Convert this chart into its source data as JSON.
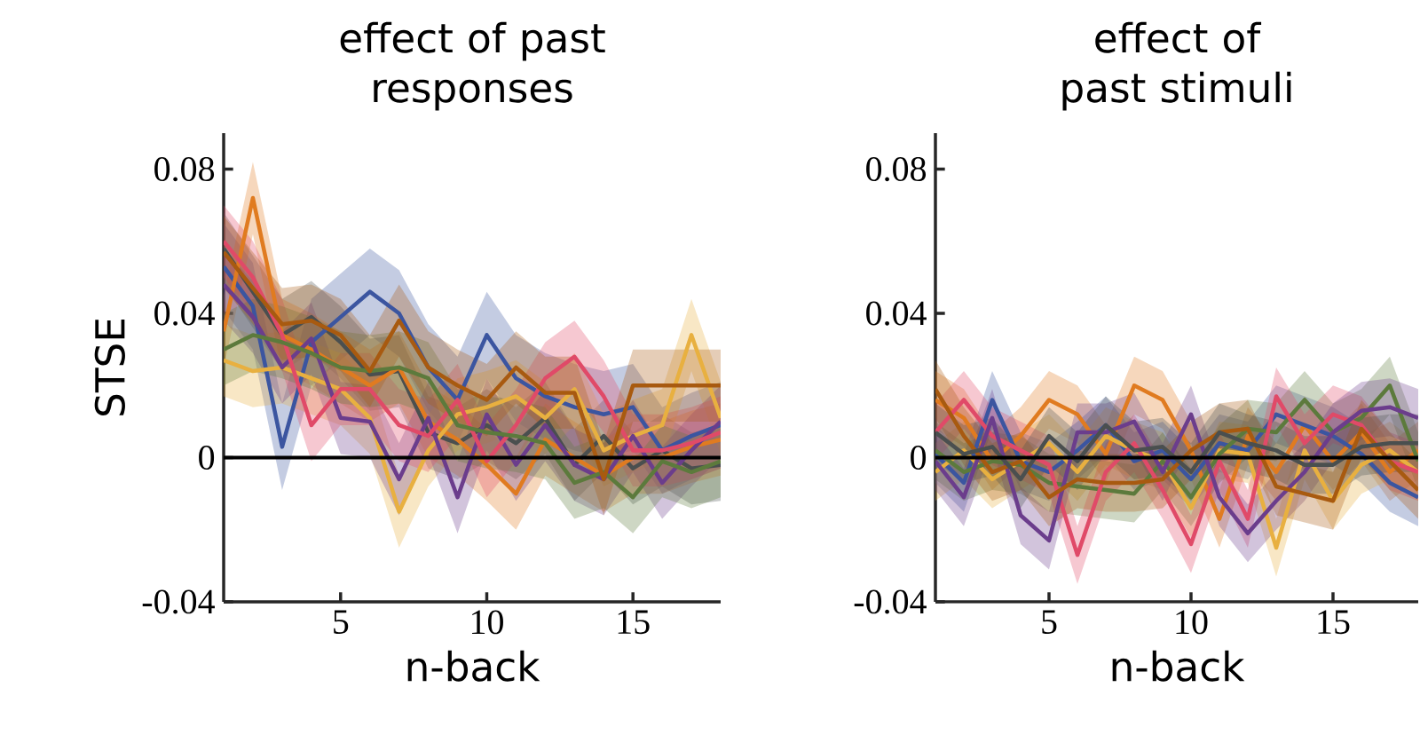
{
  "chart_data": [
    {
      "type": "line",
      "title": "effect of past responses",
      "xlabel": "n-back",
      "ylabel": "STSE",
      "x": [
        1,
        2,
        3,
        4,
        5,
        6,
        7,
        8,
        9,
        10,
        11,
        12,
        13,
        14,
        15,
        16,
        17,
        18
      ],
      "xlim": [
        1,
        18
      ],
      "ylim": [
        -0.04,
        0.09
      ],
      "xticks": [
        5,
        10,
        15
      ],
      "yticks": [
        -0.04,
        0,
        0.04,
        0.08
      ],
      "ref_lines": [
        {
          "axis": "y",
          "value": 0,
          "color": "#000000"
        }
      ],
      "series": [
        {
          "color": "#4a4f4f",
          "values": [
            0.058,
            0.046,
            0.034,
            0.039,
            0.032,
            0.023,
            0.024,
            0.007,
            0.004,
            0.009,
            0.004,
            0.011,
            -0.002,
            0.006,
            -0.003,
            0.002,
            -0.003,
            -0.002
          ],
          "lower": [
            0.048,
            0.036,
            0.024,
            0.029,
            0.022,
            0.013,
            0.014,
            -0.003,
            -0.006,
            -0.001,
            -0.006,
            0.001,
            -0.012,
            -0.004,
            -0.013,
            -0.008,
            -0.013,
            -0.012
          ],
          "upper": [
            0.068,
            0.056,
            0.044,
            0.049,
            0.042,
            0.033,
            0.034,
            0.017,
            0.014,
            0.019,
            0.014,
            0.021,
            0.008,
            0.016,
            0.007,
            0.012,
            0.007,
            0.008
          ]
        },
        {
          "color": "#3b55a0",
          "values": [
            0.053,
            0.042,
            0.003,
            0.032,
            0.039,
            0.046,
            0.04,
            0.025,
            0.016,
            0.034,
            0.022,
            0.017,
            0.014,
            0.012,
            0.014,
            0.002,
            0.006,
            0.009
          ],
          "lower": [
            0.041,
            0.03,
            -0.009,
            0.02,
            0.027,
            0.034,
            0.028,
            0.013,
            0.004,
            0.022,
            0.01,
            0.005,
            0.002,
            0.0,
            0.002,
            -0.01,
            -0.006,
            -0.003
          ],
          "upper": [
            0.065,
            0.054,
            0.015,
            0.044,
            0.051,
            0.058,
            0.052,
            0.037,
            0.028,
            0.046,
            0.034,
            0.029,
            0.026,
            0.024,
            0.026,
            0.014,
            0.018,
            0.021
          ]
        },
        {
          "color": "#e07b20",
          "values": [
            0.035,
            0.072,
            0.034,
            0.03,
            0.025,
            0.02,
            0.025,
            0.01,
            0.005,
            -0.002,
            -0.01,
            0.005,
            0.0,
            -0.005,
            0.0,
            0.0,
            0.003,
            0.005
          ],
          "lower": [
            0.025,
            0.062,
            0.024,
            0.02,
            0.015,
            0.01,
            0.015,
            0.0,
            -0.005,
            -0.012,
            -0.02,
            -0.005,
            -0.01,
            -0.015,
            -0.01,
            -0.01,
            -0.007,
            -0.005
          ],
          "upper": [
            0.045,
            0.082,
            0.044,
            0.04,
            0.035,
            0.03,
            0.035,
            0.02,
            0.015,
            0.008,
            0.0,
            0.015,
            0.01,
            0.005,
            0.01,
            0.01,
            0.013,
            0.015
          ]
        },
        {
          "color": "#e8b040",
          "values": [
            0.027,
            0.024,
            0.025,
            0.022,
            0.019,
            0.011,
            -0.015,
            0.002,
            0.012,
            0.014,
            0.017,
            0.011,
            0.019,
            0.002,
            0.006,
            0.009,
            0.034,
            0.011
          ],
          "lower": [
            0.017,
            0.014,
            0.015,
            0.012,
            0.009,
            0.001,
            -0.025,
            -0.008,
            0.002,
            0.004,
            0.007,
            0.001,
            0.009,
            -0.008,
            -0.004,
            -0.001,
            0.024,
            0.001
          ],
          "upper": [
            0.037,
            0.034,
            0.035,
            0.032,
            0.029,
            0.021,
            -0.005,
            0.012,
            0.022,
            0.024,
            0.027,
            0.021,
            0.029,
            0.012,
            0.016,
            0.019,
            0.044,
            0.021
          ]
        },
        {
          "color": "#6b3d8c",
          "values": [
            0.048,
            0.039,
            0.025,
            0.033,
            0.011,
            0.01,
            -0.006,
            0.011,
            -0.011,
            0.012,
            -0.002,
            0.009,
            -0.002,
            -0.006,
            0.006,
            -0.007,
            0.002,
            0.01
          ],
          "lower": [
            0.038,
            0.029,
            0.015,
            0.023,
            0.001,
            0.0,
            -0.016,
            0.001,
            -0.021,
            0.002,
            -0.012,
            -0.001,
            -0.012,
            -0.016,
            -0.004,
            -0.017,
            -0.008,
            0.0
          ],
          "upper": [
            0.058,
            0.049,
            0.035,
            0.043,
            0.021,
            0.02,
            0.004,
            0.021,
            -0.001,
            0.022,
            0.008,
            0.019,
            0.008,
            0.004,
            0.016,
            0.003,
            0.012,
            0.02
          ]
        },
        {
          "color": "#e04a68",
          "values": [
            0.06,
            0.05,
            0.034,
            0.009,
            0.019,
            0.019,
            0.009,
            0.006,
            0.016,
            -0.001,
            0.009,
            0.022,
            0.028,
            0.017,
            0.002,
            0.002,
            0.004,
            0.007
          ],
          "lower": [
            0.05,
            0.04,
            0.024,
            -0.001,
            0.009,
            0.009,
            -0.001,
            -0.004,
            0.006,
            -0.011,
            -0.001,
            0.012,
            0.018,
            0.007,
            -0.008,
            -0.008,
            -0.006,
            -0.003
          ],
          "upper": [
            0.07,
            0.06,
            0.044,
            0.019,
            0.029,
            0.029,
            0.019,
            0.016,
            0.026,
            0.009,
            0.019,
            0.032,
            0.038,
            0.027,
            0.012,
            0.012,
            0.014,
            0.017
          ]
        },
        {
          "color": "#5c7a3c",
          "values": [
            0.03,
            0.034,
            0.032,
            0.029,
            0.025,
            0.024,
            0.025,
            0.022,
            0.009,
            0.007,
            0.006,
            0.004,
            -0.007,
            -0.004,
            -0.011,
            -0.001,
            -0.004,
            -0.001
          ],
          "lower": [
            0.02,
            0.024,
            0.022,
            0.019,
            0.015,
            0.014,
            0.015,
            0.012,
            -0.001,
            -0.003,
            -0.004,
            -0.006,
            -0.017,
            -0.014,
            -0.021,
            -0.011,
            -0.014,
            -0.011
          ],
          "upper": [
            0.04,
            0.044,
            0.042,
            0.039,
            0.035,
            0.034,
            0.035,
            0.032,
            0.019,
            0.017,
            0.016,
            0.014,
            0.003,
            0.006,
            -0.001,
            0.009,
            0.006,
            0.009
          ]
        },
        {
          "color": "#a85a10",
          "values": [
            0.057,
            0.047,
            0.037,
            0.038,
            0.034,
            0.024,
            0.038,
            0.025,
            0.02,
            0.016,
            0.025,
            0.018,
            0.018,
            -0.006,
            0.02,
            0.02,
            0.02,
            0.02
          ],
          "lower": [
            0.047,
            0.037,
            0.027,
            0.028,
            0.024,
            0.014,
            0.028,
            0.015,
            0.01,
            0.006,
            0.015,
            0.008,
            0.008,
            -0.016,
            0.01,
            0.01,
            0.01,
            0.01
          ],
          "upper": [
            0.067,
            0.057,
            0.047,
            0.048,
            0.044,
            0.034,
            0.048,
            0.035,
            0.03,
            0.026,
            0.035,
            0.028,
            0.028,
            0.004,
            0.03,
            0.03,
            0.03,
            0.03
          ]
        }
      ]
    },
    {
      "type": "line",
      "title": "effect of past stimuli",
      "xlabel": "n-back",
      "x": [
        1,
        2,
        3,
        4,
        5,
        6,
        7,
        8,
        9,
        10,
        11,
        12,
        13,
        14,
        15,
        16,
        17,
        18
      ],
      "xlim": [
        1,
        18
      ],
      "ylim": [
        -0.04,
        0.09
      ],
      "xticks": [
        5,
        10,
        15
      ],
      "yticks": [
        -0.04,
        0,
        0.04,
        0.08
      ],
      "ref_lines": [
        {
          "axis": "y",
          "value": 0,
          "color": "#000000"
        }
      ],
      "series": [
        {
          "color": "#e07b20",
          "values": [
            0.016,
            0.011,
            -0.001,
            0.006,
            0.016,
            0.012,
            0.001,
            0.02,
            0.016,
            0.002,
            -0.017,
            0.006,
            -0.004,
            0.009,
            -0.001,
            0.007,
            -0.004,
            0.002
          ],
          "lower": [
            0.008,
            0.003,
            -0.009,
            -0.002,
            0.008,
            0.004,
            -0.007,
            0.012,
            0.008,
            -0.006,
            -0.025,
            -0.002,
            -0.012,
            0.001,
            -0.009,
            -0.001,
            -0.012,
            -0.006
          ],
          "upper": [
            0.024,
            0.019,
            0.007,
            0.014,
            0.024,
            0.02,
            0.009,
            0.028,
            0.024,
            0.01,
            -0.009,
            0.014,
            0.004,
            0.017,
            0.007,
            0.015,
            0.004,
            0.01
          ]
        },
        {
          "color": "#3b55a0",
          "values": [
            0.001,
            -0.007,
            0.016,
            -0.001,
            -0.004,
            0.002,
            0.009,
            -0.001,
            0.002,
            -0.006,
            0.004,
            0.002,
            0.012,
            0.009,
            0.006,
            0.001,
            -0.007,
            -0.011
          ],
          "lower": [
            -0.007,
            -0.015,
            0.008,
            -0.009,
            -0.012,
            -0.006,
            0.001,
            -0.009,
            -0.006,
            -0.014,
            -0.004,
            -0.006,
            0.004,
            0.001,
            -0.002,
            -0.007,
            -0.015,
            -0.019
          ],
          "upper": [
            0.009,
            0.001,
            0.024,
            0.007,
            0.004,
            0.01,
            0.017,
            0.007,
            0.01,
            0.002,
            0.012,
            0.01,
            0.02,
            0.017,
            0.014,
            0.009,
            0.001,
            -0.003
          ]
        },
        {
          "color": "#e8b040",
          "values": [
            -0.004,
            0.002,
            -0.006,
            -0.001,
            0.004,
            -0.004,
            0.006,
            0.002,
            -0.001,
            -0.014,
            0.002,
            0.001,
            -0.025,
            0.002,
            -0.012,
            -0.002,
            0.002,
            -0.004
          ],
          "lower": [
            -0.012,
            -0.006,
            -0.014,
            -0.009,
            -0.004,
            -0.012,
            -0.002,
            -0.006,
            -0.009,
            -0.022,
            -0.006,
            -0.007,
            -0.033,
            -0.006,
            -0.02,
            -0.01,
            -0.006,
            -0.012
          ],
          "upper": [
            0.004,
            0.01,
            0.002,
            0.007,
            0.012,
            0.004,
            0.014,
            0.01,
            0.007,
            -0.006,
            0.01,
            0.009,
            -0.017,
            0.01,
            -0.004,
            0.006,
            0.01,
            0.004
          ]
        },
        {
          "color": "#5c7a3c",
          "values": [
            0.002,
            -0.004,
            -0.001,
            -0.002,
            -0.007,
            -0.008,
            -0.009,
            -0.01,
            -0.001,
            -0.011,
            0.001,
            0.008,
            0.007,
            0.016,
            0.007,
            0.011,
            0.02,
            -0.001
          ],
          "lower": [
            -0.006,
            -0.012,
            -0.009,
            -0.01,
            -0.015,
            -0.016,
            -0.017,
            -0.018,
            -0.009,
            -0.019,
            -0.007,
            0.0,
            -0.001,
            0.008,
            -0.001,
            0.003,
            0.012,
            -0.009
          ],
          "upper": [
            0.01,
            0.004,
            0.007,
            0.006,
            0.001,
            0.0,
            -0.001,
            -0.002,
            0.007,
            -0.003,
            0.009,
            0.016,
            0.015,
            0.024,
            0.015,
            0.019,
            0.028,
            0.007
          ]
        },
        {
          "color": "#e04a68",
          "values": [
            0.007,
            0.016,
            0.006,
            0.002,
            -0.002,
            -0.027,
            -0.004,
            0.004,
            -0.009,
            -0.024,
            -0.001,
            -0.017,
            0.017,
            0.004,
            0.012,
            0.009,
            -0.001,
            -0.004
          ],
          "lower": [
            -0.001,
            0.008,
            -0.002,
            -0.006,
            -0.01,
            -0.035,
            -0.012,
            -0.004,
            -0.017,
            -0.032,
            -0.009,
            -0.025,
            0.009,
            -0.004,
            0.004,
            0.001,
            -0.009,
            -0.012
          ],
          "upper": [
            0.015,
            0.024,
            0.014,
            0.01,
            0.006,
            -0.019,
            0.004,
            0.012,
            -0.001,
            -0.016,
            0.007,
            -0.009,
            0.025,
            0.012,
            0.02,
            0.017,
            0.007,
            0.004
          ]
        },
        {
          "color": "#6b3d8c",
          "values": [
            -0.001,
            -0.011,
            0.011,
            -0.016,
            -0.023,
            0.007,
            0.007,
            0.01,
            -0.004,
            0.012,
            -0.011,
            -0.021,
            -0.012,
            -0.004,
            0.007,
            0.013,
            0.014,
            0.011
          ],
          "lower": [
            -0.009,
            -0.019,
            0.003,
            -0.024,
            -0.031,
            -0.001,
            -0.001,
            0.002,
            -0.012,
            0.004,
            -0.019,
            -0.029,
            -0.02,
            -0.012,
            -0.001,
            0.005,
            0.006,
            0.003
          ],
          "upper": [
            0.007,
            -0.003,
            0.019,
            -0.008,
            -0.015,
            0.015,
            0.015,
            0.018,
            0.004,
            0.02,
            -0.003,
            -0.013,
            -0.004,
            0.004,
            0.015,
            0.021,
            0.022,
            0.019
          ]
        },
        {
          "color": "#a85a10",
          "values": [
            0.019,
            0.006,
            -0.004,
            -0.001,
            -0.011,
            -0.006,
            -0.007,
            -0.007,
            -0.006,
            0.002,
            0.007,
            0.008,
            -0.008,
            -0.01,
            -0.012,
            0.008,
            -0.001,
            -0.009
          ],
          "lower": [
            0.011,
            -0.002,
            -0.012,
            -0.009,
            -0.019,
            -0.014,
            -0.015,
            -0.015,
            -0.014,
            -0.006,
            -0.001,
            0.0,
            -0.016,
            -0.018,
            -0.02,
            0.0,
            -0.009,
            -0.017
          ],
          "upper": [
            0.027,
            0.014,
            0.004,
            0.007,
            -0.003,
            0.002,
            0.001,
            0.001,
            0.002,
            0.01,
            0.015,
            0.016,
            0.0,
            -0.002,
            -0.004,
            0.016,
            0.007,
            -0.001
          ]
        },
        {
          "color": "#4a4f4f",
          "values": [
            0.007,
            0.001,
            0.003,
            -0.006,
            0.006,
            -0.001,
            0.009,
            0.002,
            0.003,
            -0.004,
            0.007,
            0.004,
            0.002,
            -0.002,
            -0.002,
            0.003,
            0.004,
            0.004
          ],
          "lower": [
            -0.001,
            -0.007,
            -0.005,
            -0.014,
            -0.002,
            -0.009,
            0.001,
            -0.006,
            -0.005,
            -0.012,
            -0.001,
            -0.004,
            -0.006,
            -0.01,
            -0.01,
            -0.005,
            -0.004,
            -0.004
          ],
          "upper": [
            0.015,
            0.009,
            0.011,
            0.002,
            0.014,
            0.007,
            0.017,
            0.01,
            0.011,
            0.004,
            0.015,
            0.012,
            0.01,
            0.006,
            0.006,
            0.011,
            0.012,
            0.012
          ]
        }
      ]
    }
  ]
}
